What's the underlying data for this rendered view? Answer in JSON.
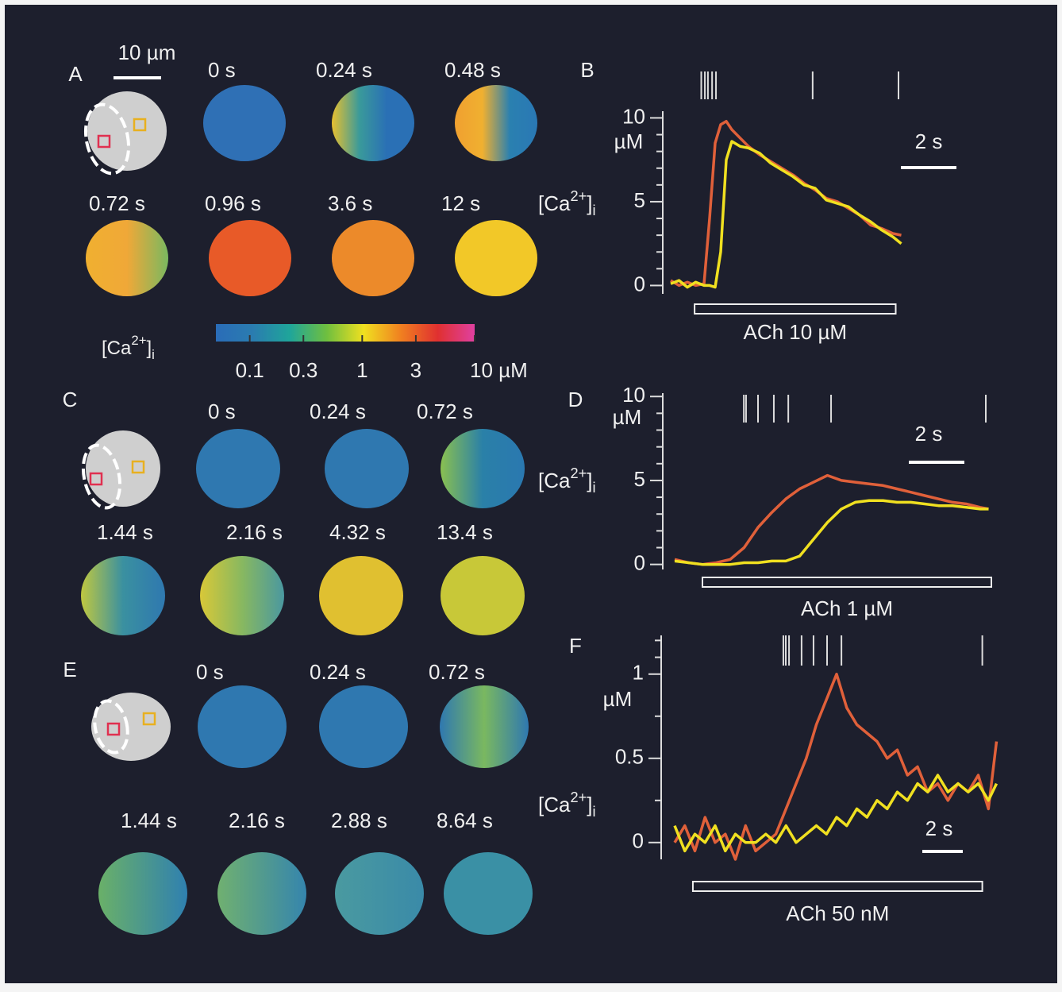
{
  "panels": [
    {
      "label": "A",
      "scalebar": "10 µm",
      "frames": [
        {
          "time": "0 s",
          "fill": [
            "#2f70b5"
          ]
        },
        {
          "time": "0.24 s",
          "fill": [
            "#e8c030",
            "#3a9a9a",
            "#2a70b5",
            "#2a70b5"
          ]
        },
        {
          "time": "0.48 s",
          "fill": [
            "#f0a030",
            "#f0b030",
            "#2a80b0",
            "#2a78b5"
          ]
        },
        {
          "time": "0.72 s",
          "fill": [
            "#f0b030",
            "#f0a838",
            "#7ab860"
          ]
        },
        {
          "time": "0.96 s",
          "fill": [
            "#e85a28"
          ]
        },
        {
          "time": "3.6 s",
          "fill": [
            "#ec8a2a"
          ]
        },
        {
          "time": "12 s",
          "fill": [
            "#f2c828"
          ]
        }
      ]
    },
    {
      "label": "C",
      "frames": [
        {
          "time": "0 s",
          "fill": [
            "#2f78b0"
          ]
        },
        {
          "time": "0.24 s",
          "fill": [
            "#2f78b0"
          ]
        },
        {
          "time": "0.72 s",
          "fill": [
            "#8ac050",
            "#2a80a8",
            "#2a78b0"
          ]
        },
        {
          "time": "1.44 s",
          "fill": [
            "#c0c840",
            "#3a90a0",
            "#2f78b0"
          ]
        },
        {
          "time": "2.16 s",
          "fill": [
            "#d8c838",
            "#88b860",
            "#4a98a0"
          ]
        },
        {
          "time": "4.32 s",
          "fill": [
            "#e0c030"
          ]
        },
        {
          "time": "13.4 s",
          "fill": [
            "#c8c838"
          ]
        }
      ]
    },
    {
      "label": "E",
      "frames": [
        {
          "time": "0 s",
          "fill": [
            "#2f78b0"
          ]
        },
        {
          "time": "0.24 s",
          "fill": [
            "#2f78b0"
          ]
        },
        {
          "time": "0.72 s",
          "fill": [
            "#2f78b0",
            "#7ab860",
            "#2f78b0"
          ]
        },
        {
          "time": "1.44 s",
          "fill": [
            "#6ab068",
            "#2f80b0"
          ]
        },
        {
          "time": "2.16 s",
          "fill": [
            "#70b070",
            "#3585ad"
          ]
        },
        {
          "time": "2.88 s",
          "fill": [
            "#4a9aa0",
            "#3a8aa8"
          ]
        },
        {
          "time": "8.64 s",
          "fill": [
            "#3a90a5"
          ]
        }
      ]
    }
  ],
  "colorbar": {
    "label": [
      "[Ca",
      "2+",
      "]",
      "i"
    ],
    "lim": [
      0.05,
      10
    ],
    "colors": [
      "#2a6cb8",
      "#2a7cb0",
      "#1fa59a",
      "#6fbf3f",
      "#f0e020",
      "#f08020",
      "#e03030",
      "#e040a0"
    ],
    "ticks": [
      0.1,
      0.3,
      1,
      3,
      {
        "value": 10,
        "label": "10 µM"
      }
    ]
  },
  "chart_data": [
    {
      "type": "line",
      "label": "B",
      "ylabel": [
        "[Ca",
        "2+",
        "]",
        "i"
      ],
      "yunit": "µM",
      "ylim": [
        -0.5,
        10.4
      ],
      "yticks": [
        0,
        5,
        10
      ],
      "yminor": [
        1,
        2,
        3,
        4,
        6,
        7,
        8,
        9
      ],
      "scalebar": {
        "value": 2,
        "label": "2 s"
      },
      "stimulus": {
        "label": "ACh 10 µM",
        "start": 0.86,
        "end": 8.1
      },
      "events": [
        1.1,
        1.23,
        1.34,
        1.49,
        1.63,
        5.11,
        8.2
      ],
      "x": [
        0,
        0.3,
        0.6,
        0.9,
        1.2,
        1.4,
        1.6,
        1.8,
        2.0,
        2.2,
        2.5,
        2.8,
        3.2,
        3.6,
        4.0,
        4.4,
        4.8,
        5.2,
        5.6,
        6.0,
        6.4,
        6.8,
        7.2,
        7.6,
        8.0,
        8.3
      ],
      "series": [
        {
          "color": "#e0603a",
          "values": [
            0.3,
            0,
            0.2,
            0,
            0.1,
            4,
            8.5,
            9.6,
            9.8,
            9.3,
            8.8,
            8.3,
            7.8,
            7.4,
            7,
            6.6,
            6.1,
            5.7,
            5.2,
            5,
            4.6,
            4.2,
            3.6,
            3.4,
            3.1,
            3.0
          ]
        },
        {
          "color": "#f0e020",
          "values": [
            0.1,
            0.3,
            -0.1,
            0.2,
            0,
            0,
            -0.1,
            2,
            7.5,
            8.6,
            8.3,
            8.2,
            7.9,
            7.3,
            6.9,
            6.5,
            6.0,
            5.8,
            5.1,
            4.9,
            4.7,
            4.2,
            3.8,
            3.3,
            2.9,
            2.5
          ]
        }
      ]
    },
    {
      "type": "line",
      "label": "D",
      "ylabel": [
        "[Ca",
        "2+",
        "]",
        "i"
      ],
      "yunit": "µM",
      "ylim": [
        -0.3,
        10.2
      ],
      "yticks": [
        0,
        5,
        10
      ],
      "yminor": [
        1,
        2,
        3,
        4,
        6,
        7,
        8,
        9
      ],
      "scalebar": {
        "value": 2,
        "label": "2 s"
      },
      "stimulus": {
        "label": "ACh 1 µM",
        "start": 1.0,
        "end": 11.4
      },
      "events": [
        2.49,
        2.57,
        3.0,
        3.57,
        4.09,
        5.63,
        11.2
      ],
      "x": [
        0,
        0.5,
        1,
        1.5,
        2,
        2.5,
        3,
        3.5,
        4,
        4.5,
        5,
        5.5,
        6,
        6.5,
        7,
        7.5,
        8,
        8.5,
        9,
        9.5,
        10,
        10.5,
        11,
        11.3
      ],
      "series": [
        {
          "color": "#e0603a",
          "values": [
            0.3,
            0.1,
            0,
            0.1,
            0.3,
            1,
            2.2,
            3.1,
            3.9,
            4.5,
            4.9,
            5.3,
            5.0,
            4.9,
            4.8,
            4.7,
            4.5,
            4.3,
            4.1,
            3.9,
            3.7,
            3.6,
            3.4,
            3.3
          ]
        },
        {
          "color": "#f0e020",
          "values": [
            0.2,
            0.1,
            0,
            0,
            0,
            0.1,
            0.1,
            0.2,
            0.2,
            0.5,
            1.5,
            2.5,
            3.3,
            3.7,
            3.8,
            3.8,
            3.7,
            3.7,
            3.6,
            3.5,
            3.5,
            3.4,
            3.3,
            3.3
          ]
        }
      ]
    },
    {
      "type": "line",
      "label": "F",
      "ylabel": [
        "[Ca",
        "2+",
        "]",
        "i"
      ],
      "yunit": "µM",
      "ylim": [
        -0.1,
        1.23
      ],
      "yticks": [
        0,
        0.5,
        1
      ],
      "yminor": [
        0.25,
        0.75,
        1.1,
        1.2
      ],
      "scalebar": {
        "value": 2,
        "label": "2 s"
      },
      "stimulus": {
        "label": "ACh 50 nM",
        "start": 0.9,
        "end": 15.2
      },
      "events": [
        5.37,
        5.49,
        5.65,
        6.27,
        6.86,
        7.53,
        8.24,
        15.2
      ],
      "x": [
        0,
        0.5,
        1,
        1.5,
        2,
        2.5,
        3,
        3.5,
        4,
        4.5,
        5,
        5.5,
        6,
        6.5,
        7,
        7.5,
        8,
        8.5,
        9,
        9.5,
        10,
        10.5,
        11,
        11.5,
        12,
        12.5,
        13,
        13.5,
        14,
        14.5,
        15,
        15.5,
        15.9
      ],
      "series": [
        {
          "color": "#e0603a",
          "values": [
            0.0,
            0.1,
            -0.05,
            0.15,
            0.0,
            0.05,
            -0.1,
            0.1,
            -0.05,
            0.0,
            0.05,
            0.2,
            0.35,
            0.5,
            0.7,
            0.85,
            1.0,
            0.8,
            0.7,
            0.65,
            0.6,
            0.5,
            0.55,
            0.4,
            0.45,
            0.3,
            0.35,
            0.25,
            0.35,
            0.3,
            0.4,
            0.2,
            0.6
          ]
        },
        {
          "color": "#f0e020",
          "values": [
            0.1,
            -0.05,
            0.05,
            0.0,
            0.1,
            -0.05,
            0.05,
            0.0,
            0.0,
            0.05,
            0.0,
            0.1,
            0.0,
            0.05,
            0.1,
            0.05,
            0.15,
            0.1,
            0.2,
            0.15,
            0.25,
            0.2,
            0.3,
            0.25,
            0.35,
            0.3,
            0.4,
            0.3,
            0.35,
            0.3,
            0.35,
            0.25,
            0.35
          ]
        }
      ]
    }
  ]
}
